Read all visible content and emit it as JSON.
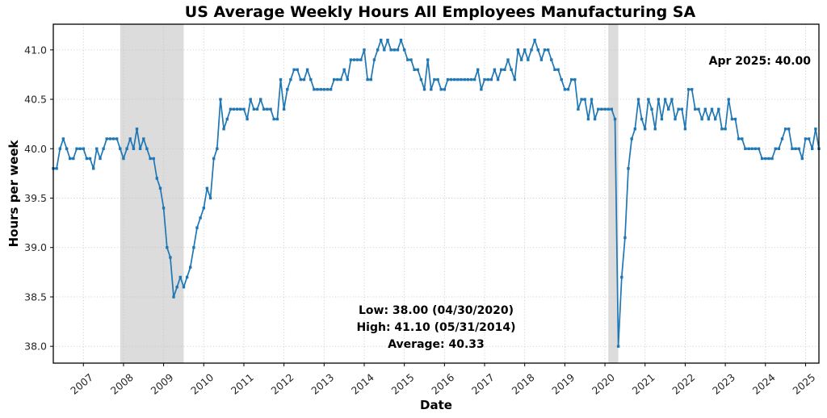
{
  "figure": {
    "title": "US Average Weekly Hours All Employees Manufacturing SA",
    "xlabel": "Date",
    "ylabel": "Hours per week"
  },
  "annotations": {
    "latest": "Apr 2025: 40.00",
    "low": "Low: 38.00 (04/30/2020)",
    "high": "High: 41.10 (05/31/2014)",
    "average": "Average: 40.33"
  },
  "chart_data": {
    "type": "line",
    "title": "US Average Weekly Hours All Employees Manufacturing SA",
    "xlabel": "Date",
    "ylabel": "Hours per week",
    "grid": "dotted",
    "legend": "none",
    "marker": "square",
    "line_color": "#1f77b4",
    "band_color": "#dcdcdc",
    "grid_color": "#c3c3c3",
    "spine_color": "#000000",
    "ylim": [
      37.83,
      41.26
    ],
    "xlim_years": [
      2006.25,
      2025.3333
    ],
    "y_ticks": [
      38.0,
      38.5,
      39.0,
      39.5,
      40.0,
      40.5,
      41.0
    ],
    "y_tick_labels": [
      "38.0",
      "38.5",
      "39.0",
      "39.5",
      "40.0",
      "40.5",
      "41.0"
    ],
    "x_ticks": [
      2007,
      2008,
      2009,
      2010,
      2011,
      2012,
      2013,
      2014,
      2015,
      2016,
      2017,
      2018,
      2019,
      2020,
      2021,
      2022,
      2023,
      2024,
      2025
    ],
    "x_tick_labels": [
      "2007",
      "2008",
      "2009",
      "2010",
      "2011",
      "2012",
      "2013",
      "2014",
      "2015",
      "2016",
      "2017",
      "2018",
      "2019",
      "2020",
      "2021",
      "2022",
      "2023",
      "2024",
      "2025"
    ],
    "recession_bands": [
      {
        "start": "2007-12",
        "end": "2009-06"
      },
      {
        "start": "2020-02",
        "end": "2020-04"
      }
    ],
    "stats": {
      "low": 38.0,
      "low_date": "04/30/2020",
      "high": 41.1,
      "high_date": "05/31/2014",
      "average": 40.33,
      "latest_label": "Apr 2025",
      "latest_value": 40.0
    },
    "series": [
      {
        "name": "US Average Weekly Hours All Employees Manufacturing SA",
        "start": "2006-03",
        "frequency": "monthly",
        "values": [
          39.8,
          39.8,
          40.0,
          40.1,
          40.0,
          39.9,
          39.9,
          40.0,
          40.0,
          40.0,
          39.9,
          39.9,
          39.8,
          40.0,
          39.9,
          40.0,
          40.1,
          40.1,
          40.1,
          40.1,
          40.0,
          39.9,
          40.0,
          40.1,
          40.0,
          40.2,
          40.0,
          40.1,
          40.0,
          39.9,
          39.9,
          39.7,
          39.6,
          39.4,
          39.0,
          38.9,
          38.5,
          38.6,
          38.7,
          38.6,
          38.7,
          38.8,
          39.0,
          39.2,
          39.3,
          39.4,
          39.6,
          39.5,
          39.9,
          40.0,
          40.5,
          40.2,
          40.3,
          40.4,
          40.4,
          40.4,
          40.4,
          40.4,
          40.3,
          40.5,
          40.4,
          40.4,
          40.5,
          40.4,
          40.4,
          40.4,
          40.3,
          40.3,
          40.7,
          40.4,
          40.6,
          40.7,
          40.8,
          40.8,
          40.7,
          40.7,
          40.8,
          40.7,
          40.6,
          40.6,
          40.6,
          40.6,
          40.6,
          40.6,
          40.7,
          40.7,
          40.7,
          40.8,
          40.7,
          40.9,
          40.9,
          40.9,
          40.9,
          41.0,
          40.7,
          40.7,
          40.9,
          41.0,
          41.1,
          41.0,
          41.1,
          41.0,
          41.0,
          41.0,
          41.1,
          41.0,
          40.9,
          40.9,
          40.8,
          40.8,
          40.7,
          40.6,
          40.9,
          40.6,
          40.7,
          40.7,
          40.6,
          40.6,
          40.7,
          40.7,
          40.7,
          40.7,
          40.7,
          40.7,
          40.7,
          40.7,
          40.7,
          40.8,
          40.6,
          40.7,
          40.7,
          40.7,
          40.8,
          40.7,
          40.8,
          40.8,
          40.9,
          40.8,
          40.7,
          41.0,
          40.9,
          41.0,
          40.9,
          41.0,
          41.1,
          41.0,
          40.9,
          41.0,
          41.0,
          40.9,
          40.8,
          40.8,
          40.7,
          40.6,
          40.6,
          40.7,
          40.7,
          40.4,
          40.5,
          40.5,
          40.3,
          40.5,
          40.3,
          40.4,
          40.4,
          40.4,
          40.4,
          40.4,
          40.3,
          38.0,
          38.7,
          39.1,
          39.8,
          40.1,
          40.2,
          40.5,
          40.3,
          40.2,
          40.5,
          40.4,
          40.2,
          40.5,
          40.3,
          40.5,
          40.4,
          40.5,
          40.3,
          40.4,
          40.4,
          40.2,
          40.6,
          40.6,
          40.4,
          40.4,
          40.3,
          40.4,
          40.3,
          40.4,
          40.3,
          40.4,
          40.2,
          40.2,
          40.5,
          40.3,
          40.3,
          40.1,
          40.1,
          40.0,
          40.0,
          40.0,
          40.0,
          40.0,
          39.9,
          39.9,
          39.9,
          39.9,
          40.0,
          40.0,
          40.1,
          40.2,
          40.2,
          40.0,
          40.0,
          40.0,
          39.9,
          40.1,
          40.1,
          40.0,
          40.2,
          40.0
        ]
      }
    ]
  }
}
